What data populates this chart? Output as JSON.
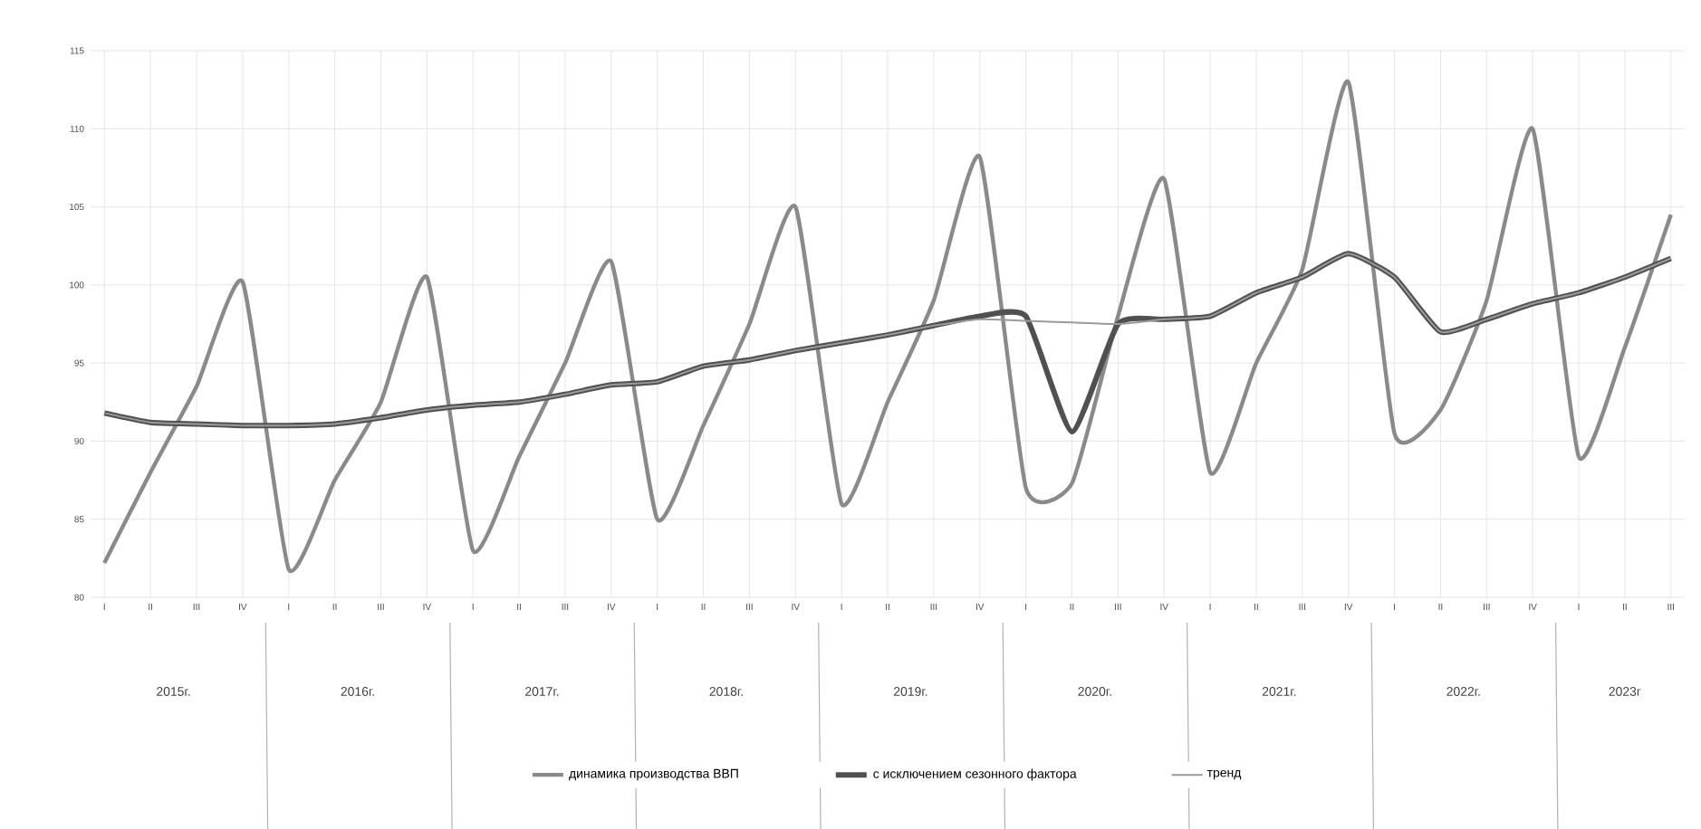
{
  "chart_data": {
    "type": "line",
    "categories": [
      "I",
      "II",
      "III",
      "IV",
      "I",
      "II",
      "III",
      "IV",
      "I",
      "II",
      "III",
      "IV",
      "I",
      "II",
      "III",
      "IV",
      "I",
      "II",
      "III",
      "IV",
      "I",
      "II",
      "III",
      "IV",
      "I",
      "II",
      "III",
      "IV",
      "I",
      "II",
      "III",
      "IV",
      "I",
      "II",
      "III"
    ],
    "series": [
      {
        "name": "динамика производства ВВП",
        "color": "#8a8a8a",
        "values": [
          82.2,
          88,
          93.5,
          100.2,
          81.8,
          87.5,
          92.5,
          100.5,
          83,
          89,
          95,
          101.5,
          85,
          91,
          97.5,
          105,
          86,
          92.5,
          99,
          108.2,
          87,
          87.3,
          98,
          106.8,
          88,
          95,
          101,
          113,
          90.5,
          92,
          99,
          110,
          89,
          96,
          104.5
        ]
      },
      {
        "name": "с исключением сезонного фактора",
        "color": "#505050",
        "values": [
          91.8,
          91.2,
          91.1,
          91,
          91,
          91.1,
          91.5,
          92,
          92.3,
          92.5,
          93,
          93.6,
          93.8,
          94.8,
          95.2,
          95.8,
          96.3,
          96.8,
          97.4,
          98,
          98,
          90.6,
          97.5,
          97.8,
          98,
          99.5,
          100.5,
          102,
          100.5,
          97,
          97.8,
          98.8,
          99.5,
          100.5,
          101.7
        ]
      },
      {
        "name": "тренд",
        "color": "#9a9a9a",
        "values": [
          91.8,
          91.2,
          91.1,
          91,
          91,
          91.1,
          91.5,
          92,
          92.3,
          92.5,
          93,
          93.6,
          93.8,
          94.8,
          95.2,
          95.8,
          96.3,
          96.8,
          97.4,
          97.8,
          97.7,
          97.6,
          97.5,
          97.8,
          98,
          99.5,
          100.5,
          102,
          100.5,
          97,
          97.8,
          98.8,
          99.5,
          100.5,
          101.7
        ]
      }
    ],
    "annotations": [
      "2015г.",
      "2016г.",
      "2017г.",
      "2018г.",
      "2019г.",
      "2020г.",
      "2021г.",
      "2022г.",
      "2023г"
    ],
    "ylim": [
      80,
      115
    ],
    "yticks": [
      80,
      85,
      90,
      95,
      100,
      105,
      110,
      115
    ],
    "grid": true,
    "legend": "bottom",
    "marker": "none",
    "line_style": "solid"
  }
}
